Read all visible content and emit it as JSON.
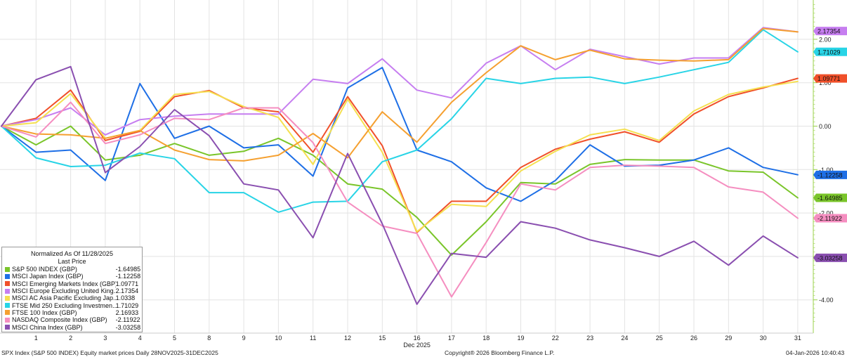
{
  "chart_data": {
    "type": "line",
    "x": [
      "28",
      "1",
      "2",
      "3",
      "4",
      "5",
      "8",
      "9",
      "10",
      "11",
      "12",
      "15",
      "16",
      "17",
      "18",
      "19",
      "22",
      "23",
      "24",
      "25",
      "26",
      "29",
      "30",
      "31"
    ],
    "x_tick_labels": [
      "1",
      "2",
      "3",
      "4",
      "5",
      "8",
      "9",
      "10",
      "11",
      "12",
      "15",
      "16",
      "17",
      "18",
      "19",
      "22",
      "23",
      "24",
      "25",
      "26",
      "29",
      "30",
      "31"
    ],
    "x_month_label": "Dec 2025",
    "y_tick_labels": [
      "2.00",
      "1.00",
      "0.00",
      "-1.00",
      "-2.00",
      "-3.00",
      "-4.00"
    ],
    "ylim": [
      -4.8,
      2.9
    ],
    "grid": true,
    "legend_position": "bottom-left",
    "series": [
      {
        "name": "S&P 500 INDEX (GBP)",
        "color": "#7ac52a",
        "last": "-1.64985",
        "values": [
          0,
          -0.43,
          0,
          -0.78,
          -0.67,
          -0.4,
          -0.67,
          -0.58,
          -0.28,
          -0.67,
          -1.33,
          -1.45,
          -2.1,
          -2.97,
          -2.2,
          -1.3,
          -1.33,
          -0.88,
          -0.77,
          -0.78,
          -0.78,
          -1.03,
          -1.06,
          -1.65
        ]
      },
      {
        "name": "MSCI Japan Index (GBP)",
        "color": "#1e6fe6",
        "last": "-1.12258",
        "values": [
          0,
          -0.6,
          -0.55,
          -1.25,
          0.98,
          -0.28,
          0,
          -0.5,
          -0.43,
          -1.15,
          0.88,
          1.35,
          -0.55,
          -0.82,
          -1.42,
          -1.73,
          -1.25,
          -0.43,
          -0.92,
          -0.9,
          -0.78,
          -0.5,
          -0.95,
          -1.12
        ]
      },
      {
        "name": "MSCI Emerging Markets Index (GBP)",
        "color": "#f0502a",
        "last": "1.09771",
        "values": [
          0,
          0.18,
          0.83,
          -0.33,
          -0.12,
          0.68,
          0.82,
          0.42,
          0.33,
          -0.6,
          0.68,
          -0.45,
          -2.45,
          -1.73,
          -1.73,
          -0.95,
          -0.53,
          -0.3,
          -0.13,
          -0.37,
          0.28,
          0.68,
          0.88,
          1.1
        ]
      },
      {
        "name": "MSCI Europe Excluding United King...",
        "color": "#c67ef0",
        "last": "2.17354",
        "values": [
          0,
          0.15,
          0.42,
          -0.2,
          0.15,
          0.23,
          0.28,
          0.28,
          0.28,
          1.08,
          0.98,
          1.55,
          0.83,
          0.65,
          1.45,
          1.85,
          1.3,
          1.77,
          1.6,
          1.43,
          1.57,
          1.57,
          2.27,
          2.17
        ]
      },
      {
        "name": "MSCI AC Asia Pacific Excluding Jap...",
        "color": "#f5e050",
        "last": "1.0338",
        "values": [
          0,
          0.08,
          0.75,
          -0.28,
          -0.1,
          0.73,
          0.8,
          0.45,
          0.2,
          -0.88,
          0.62,
          -0.6,
          -2.43,
          -1.8,
          -1.85,
          -1.03,
          -0.58,
          -0.2,
          -0.07,
          -0.33,
          0.35,
          0.73,
          0.9,
          1.03
        ]
      },
      {
        "name": "FTSE Mid 250 Excluding Investmen...",
        "color": "#28d4e6",
        "last": "1.71029",
        "values": [
          0,
          -0.73,
          -0.93,
          -0.9,
          -0.62,
          -0.75,
          -1.53,
          -1.53,
          -1.98,
          -1.75,
          -1.73,
          -0.82,
          -0.55,
          0.17,
          1.1,
          0.98,
          1.1,
          1.13,
          0.98,
          1.13,
          1.3,
          1.47,
          2.22,
          1.71
        ]
      },
      {
        "name": "FTSE 100 Index (GBP)",
        "color": "#f5a030",
        "last": "2.16933",
        "values": [
          0,
          -0.18,
          -0.2,
          -0.28,
          -0.1,
          -0.55,
          -0.77,
          -0.8,
          -0.67,
          -0.17,
          -0.73,
          0.33,
          -0.37,
          0.55,
          1.23,
          1.85,
          1.53,
          1.75,
          1.55,
          1.52,
          1.5,
          1.53,
          2.25,
          2.17
        ]
      },
      {
        "name": "NASDAQ Composite Index (GBP)",
        "color": "#f58ec0",
        "last": "-2.11922",
        "values": [
          0,
          -0.25,
          0.55,
          -0.4,
          -0.2,
          0.18,
          0.15,
          0.42,
          0.42,
          -0.38,
          -1.75,
          -2.3,
          -2.47,
          -3.93,
          -2.68,
          -1.33,
          -1.47,
          -0.95,
          -0.9,
          -0.92,
          -0.95,
          -1.4,
          -1.52,
          -2.12
        ]
      },
      {
        "name": "MSCI China Index (GBP)",
        "color": "#8a4fb0",
        "last": "-3.03258",
        "values": [
          0,
          1.07,
          1.37,
          -1.07,
          -0.47,
          0.38,
          -0.22,
          -1.33,
          -1.47,
          -2.57,
          -0.63,
          -2.25,
          -4.1,
          -2.93,
          -3.02,
          -2.2,
          -2.35,
          -2.62,
          -2.8,
          -3.0,
          -2.65,
          -3.2,
          -2.53,
          -3.03
        ]
      }
    ],
    "footer_left": "SPX Index (S&P 500 INDEX) Equity market prices Daily 28NOV2025-31DEC2025",
    "footer_center": "Copyright® 2026 Bloomberg Finance L.P.",
    "footer_right": "04-Jan-2026 10:40:43"
  },
  "legend": {
    "header": "Normalized As Of 11/28/2025",
    "subheader": "Last Price"
  }
}
